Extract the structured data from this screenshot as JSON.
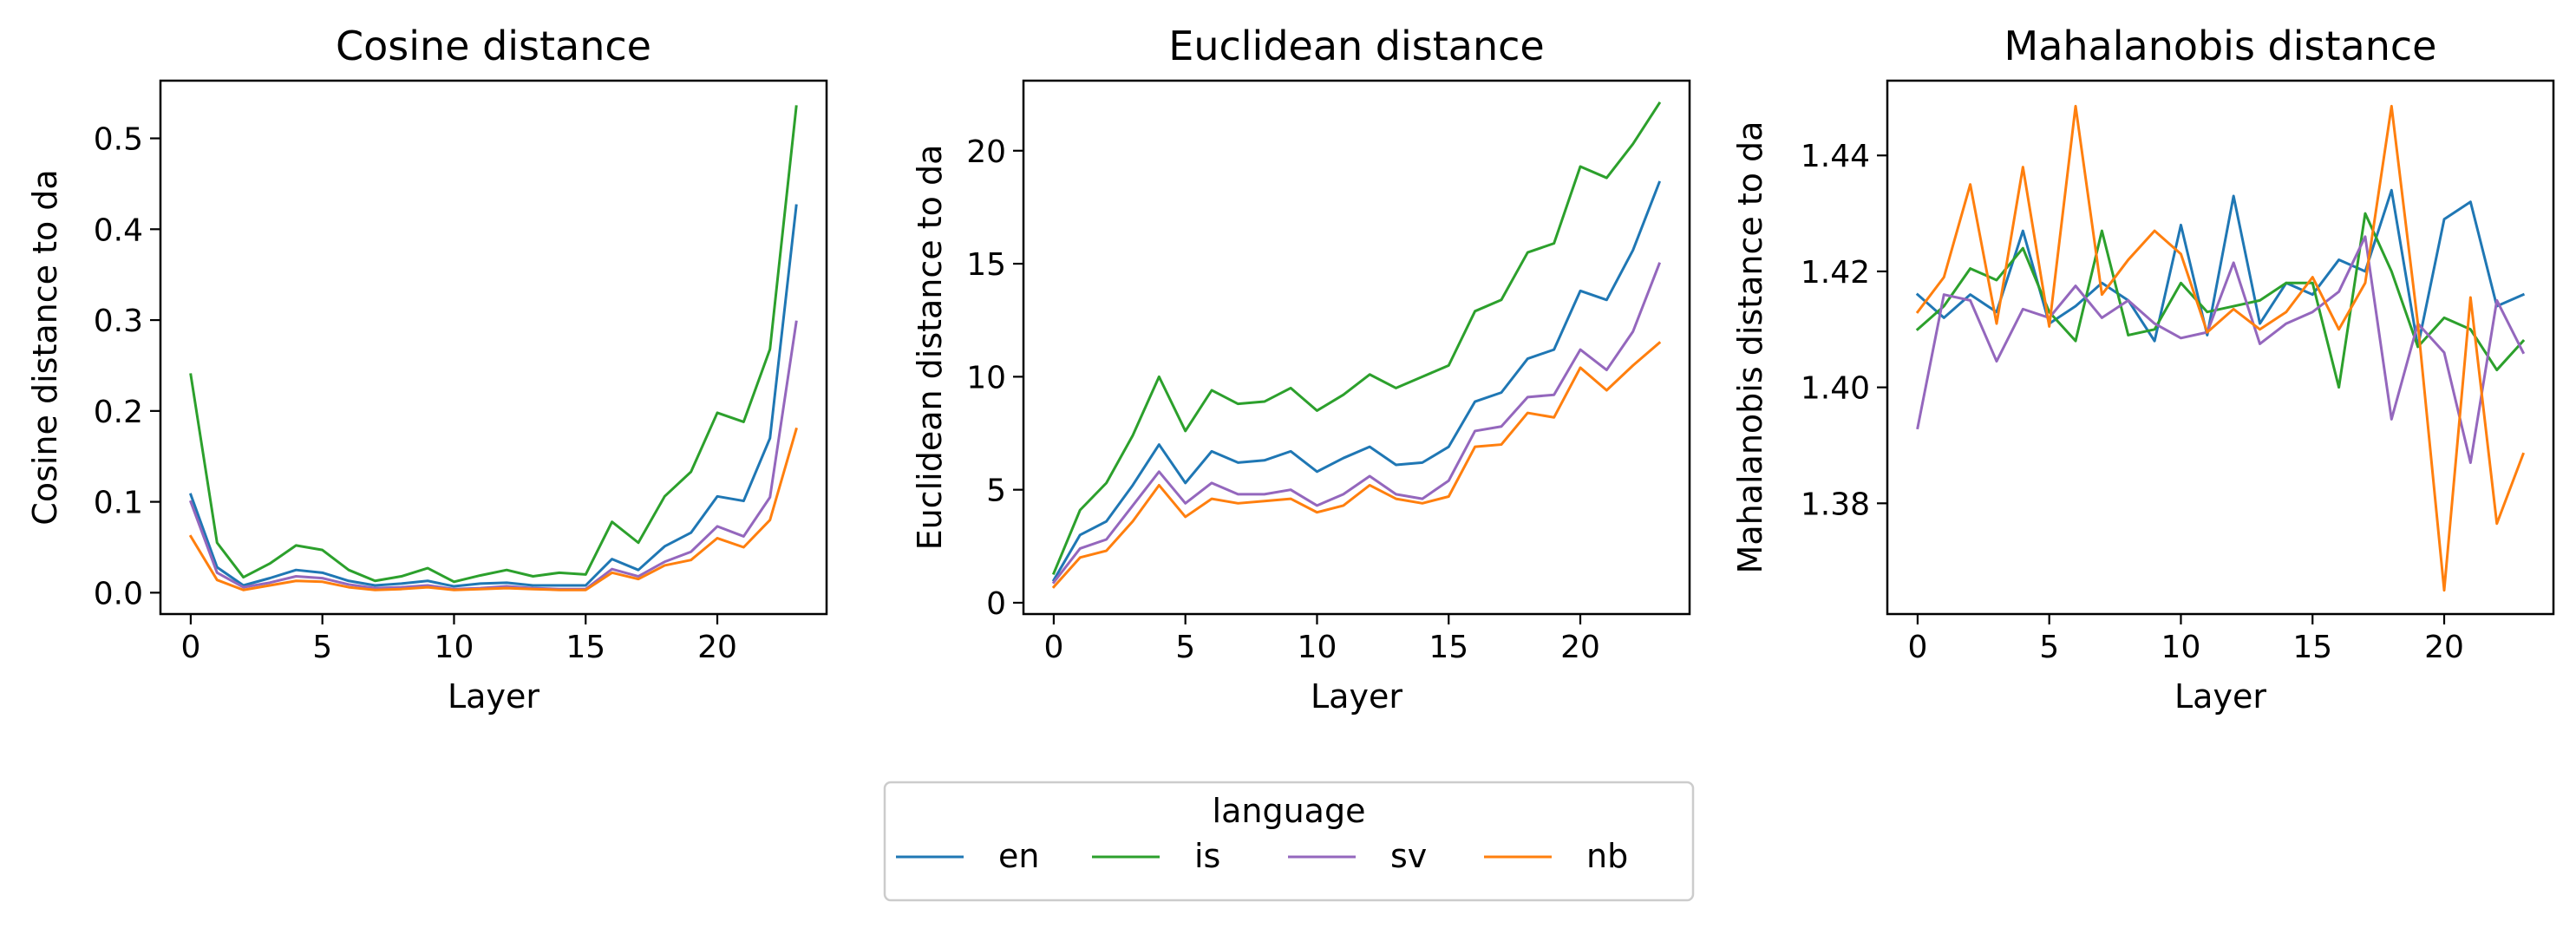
{
  "chart_data": [
    {
      "type": "line",
      "title": "Cosine distance",
      "xlabel": "Layer",
      "ylabel": "Cosine distance to da",
      "xlim": [
        -1.15,
        24.15
      ],
      "ylim": [
        -0.0235,
        0.5635
      ],
      "xticks": [
        0,
        5,
        10,
        15,
        20
      ],
      "yticks": [
        0.0,
        0.1,
        0.2,
        0.3,
        0.4,
        0.5
      ],
      "ytick_labels": [
        "0.0",
        "0.1",
        "0.2",
        "0.3",
        "0.4",
        "0.5"
      ],
      "x": [
        0,
        1,
        2,
        3,
        4,
        5,
        6,
        7,
        8,
        9,
        10,
        11,
        12,
        13,
        14,
        15,
        16,
        17,
        18,
        19,
        20,
        21,
        22,
        23
      ],
      "series": [
        {
          "name": "en",
          "values": [
            0.108,
            0.028,
            0.008,
            0.016,
            0.025,
            0.022,
            0.013,
            0.008,
            0.01,
            0.013,
            0.007,
            0.01,
            0.011,
            0.008,
            0.008,
            0.008,
            0.037,
            0.025,
            0.051,
            0.066,
            0.106,
            0.101,
            0.17,
            0.426
          ]
        },
        {
          "name": "is",
          "values": [
            0.24,
            0.055,
            0.017,
            0.032,
            0.052,
            0.047,
            0.025,
            0.013,
            0.018,
            0.027,
            0.012,
            0.019,
            0.025,
            0.018,
            0.022,
            0.02,
            0.078,
            0.055,
            0.106,
            0.133,
            0.198,
            0.188,
            0.268,
            0.535
          ]
        },
        {
          "name": "sv",
          "values": [
            0.1,
            0.022,
            0.006,
            0.011,
            0.018,
            0.016,
            0.009,
            0.005,
            0.006,
            0.008,
            0.004,
            0.005,
            0.007,
            0.005,
            0.004,
            0.004,
            0.026,
            0.018,
            0.034,
            0.045,
            0.073,
            0.062,
            0.105,
            0.298
          ]
        },
        {
          "name": "nb",
          "values": [
            0.062,
            0.014,
            0.003,
            0.008,
            0.013,
            0.012,
            0.006,
            0.003,
            0.004,
            0.006,
            0.003,
            0.004,
            0.005,
            0.004,
            0.003,
            0.003,
            0.022,
            0.015,
            0.03,
            0.036,
            0.06,
            0.05,
            0.08,
            0.18
          ]
        }
      ]
    },
    {
      "type": "line",
      "title": "Euclidean distance",
      "xlabel": "Layer",
      "ylabel": "Euclidean distance to da",
      "xlim": [
        -1.15,
        24.15
      ],
      "ylim": [
        -0.5,
        23.1
      ],
      "xticks": [
        0,
        5,
        10,
        15,
        20
      ],
      "yticks": [
        0,
        5,
        10,
        15,
        20
      ],
      "ytick_labels": [
        "0",
        "5",
        "10",
        "15",
        "20"
      ],
      "x": [
        0,
        1,
        2,
        3,
        4,
        5,
        6,
        7,
        8,
        9,
        10,
        11,
        12,
        13,
        14,
        15,
        16,
        17,
        18,
        19,
        20,
        21,
        22,
        23
      ],
      "series": [
        {
          "name": "en",
          "values": [
            1.0,
            3.0,
            3.6,
            5.2,
            7.0,
            5.3,
            6.7,
            6.2,
            6.3,
            6.7,
            5.8,
            6.4,
            6.9,
            6.1,
            6.2,
            6.9,
            8.9,
            9.3,
            10.8,
            11.2,
            13.8,
            13.4,
            15.6,
            18.6
          ]
        },
        {
          "name": "is",
          "values": [
            1.3,
            4.1,
            5.3,
            7.4,
            10.0,
            7.6,
            9.4,
            8.8,
            8.9,
            9.5,
            8.5,
            9.2,
            10.1,
            9.5,
            10.0,
            10.5,
            12.9,
            13.4,
            15.5,
            15.9,
            19.3,
            18.8,
            20.3,
            22.1
          ]
        },
        {
          "name": "sv",
          "values": [
            0.9,
            2.4,
            2.8,
            4.3,
            5.8,
            4.4,
            5.3,
            4.8,
            4.8,
            5.0,
            4.3,
            4.8,
            5.6,
            4.8,
            4.6,
            5.4,
            7.6,
            7.8,
            9.1,
            9.2,
            11.2,
            10.3,
            12.0,
            15.0
          ]
        },
        {
          "name": "nb",
          "values": [
            0.7,
            2.0,
            2.3,
            3.6,
            5.2,
            3.8,
            4.6,
            4.4,
            4.5,
            4.6,
            4.0,
            4.3,
            5.2,
            4.6,
            4.4,
            4.7,
            6.9,
            7.0,
            8.4,
            8.2,
            10.4,
            9.4,
            10.5,
            11.5
          ]
        }
      ]
    },
    {
      "type": "line",
      "title": "Mahalanobis distance",
      "xlabel": "Layer",
      "ylabel": "Mahalanobis distance to da",
      "xlim": [
        -1.15,
        24.15
      ],
      "ylim": [
        1.3609,
        1.4529
      ],
      "xticks": [
        0,
        5,
        10,
        15,
        20
      ],
      "yticks": [
        1.38,
        1.4,
        1.42,
        1.44
      ],
      "ytick_labels": [
        "1.38",
        "1.40",
        "1.42",
        "1.44"
      ],
      "x": [
        0,
        1,
        2,
        3,
        4,
        5,
        6,
        7,
        8,
        9,
        10,
        11,
        12,
        13,
        14,
        15,
        16,
        17,
        18,
        19,
        20,
        21,
        22,
        23
      ],
      "series": [
        {
          "name": "en",
          "values": [
            1.416,
            1.412,
            1.416,
            1.413,
            1.427,
            1.411,
            1.414,
            1.418,
            1.415,
            1.408,
            1.428,
            1.409,
            1.433,
            1.411,
            1.418,
            1.416,
            1.422,
            1.42,
            1.434,
            1.407,
            1.429,
            1.432,
            1.414,
            1.416
          ]
        },
        {
          "name": "is",
          "values": [
            1.41,
            1.414,
            1.4205,
            1.4185,
            1.424,
            1.413,
            1.408,
            1.427,
            1.409,
            1.41,
            1.418,
            1.413,
            1.414,
            1.415,
            1.418,
            1.418,
            1.4,
            1.43,
            1.42,
            1.407,
            1.412,
            1.41,
            1.403,
            1.408
          ]
        },
        {
          "name": "sv",
          "values": [
            1.393,
            1.416,
            1.415,
            1.4045,
            1.4135,
            1.412,
            1.4175,
            1.412,
            1.415,
            1.411,
            1.4085,
            1.4095,
            1.4215,
            1.4075,
            1.411,
            1.413,
            1.4165,
            1.426,
            1.3945,
            1.411,
            1.406,
            1.387,
            1.415,
            1.406
          ]
        },
        {
          "name": "nb",
          "values": [
            1.413,
            1.419,
            1.435,
            1.411,
            1.438,
            1.4105,
            1.4485,
            1.416,
            1.422,
            1.427,
            1.423,
            1.4095,
            1.4135,
            1.41,
            1.413,
            1.419,
            1.41,
            1.418,
            1.4485,
            1.411,
            1.365,
            1.4155,
            1.3765,
            1.3885
          ]
        }
      ]
    }
  ],
  "legend": {
    "title": "language",
    "placement": "bottom-center",
    "entries": [
      {
        "name": "en",
        "color": "#1f77b4"
      },
      {
        "name": "is",
        "color": "#2ca02c"
      },
      {
        "name": "sv",
        "color": "#9467bd"
      },
      {
        "name": "nb",
        "color": "#ff7f0e"
      }
    ]
  },
  "colors": {
    "en": "#1f77b4",
    "is": "#2ca02c",
    "sv": "#9467bd",
    "nb": "#ff7f0e"
  }
}
